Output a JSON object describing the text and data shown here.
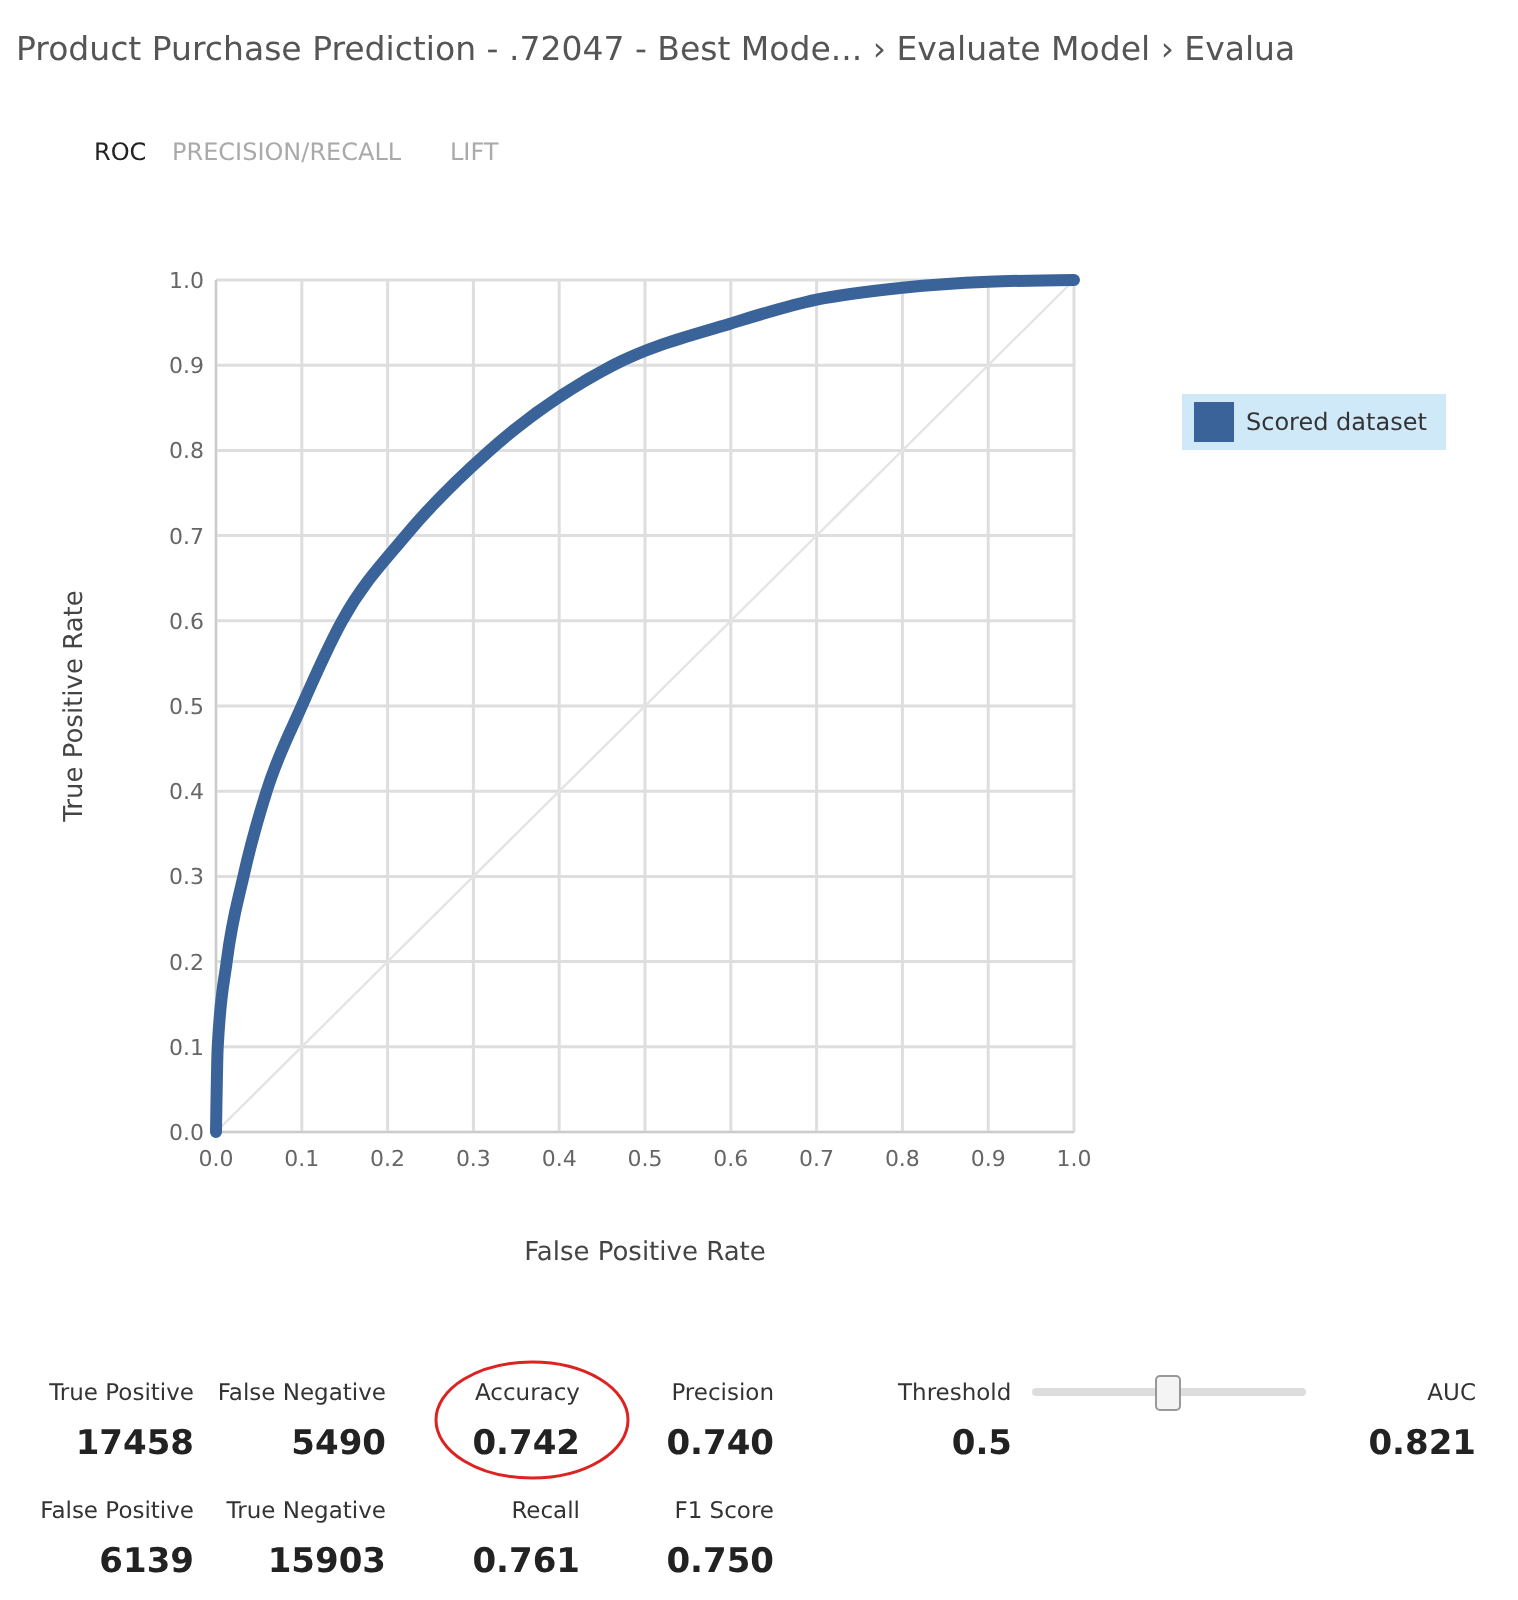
{
  "chart_data": {
    "type": "line",
    "title": "Product Purchase Prediction - .72047 - Best Mode... › Evaluate Model › Evalua",
    "xlabel": "False Positive Rate",
    "ylabel": "True Positive Rate",
    "series": [
      {
        "name": "Scored dataset",
        "color": "#3a6399",
        "x": [
          0,
          0.002,
          0.0125,
          0.032,
          0.059,
          0.1,
          0.147,
          0.221,
          0.319,
          0.463,
          0.6,
          0.7,
          0.8,
          0.9,
          1
        ],
        "values": [
          0,
          0.1,
          0.2,
          0.3,
          0.4,
          0.5,
          0.6,
          0.7,
          0.8,
          0.9,
          0.949,
          0.977,
          0.991,
          0.998,
          1
        ]
      },
      {
        "color": "#e4e4e4",
        "x": [
          0,
          1
        ],
        "values": [
          0,
          1
        ]
      }
    ],
    "xlim": [
      0,
      1
    ],
    "ylim": [
      0,
      1
    ],
    "xticks": [
      {
        "value": 0,
        "label": "0.0"
      },
      0.1,
      0.2,
      0.3,
      0.4,
      0.5,
      0.6,
      0.7,
      0.8,
      0.9,
      {
        "value": 1,
        "label": "1.0"
      }
    ],
    "yticks": [
      {
        "value": 0,
        "label": "0.0"
      },
      0.1,
      0.2,
      0.3,
      0.4,
      0.5,
      0.6,
      0.7,
      0.8,
      0.9,
      {
        "value": 1,
        "label": "1.0"
      }
    ],
    "grid": true,
    "legend": "right",
    "marker": "none",
    "line_style": "solid",
    "annotations": [
      "ROC",
      "PRECISION/RECALL",
      "LIFT",
      "True Positive",
      "17458",
      "False Negative",
      "5490",
      "Accuracy",
      "0.742",
      "Precision",
      "0.740",
      "Threshold",
      "0.5",
      "AUC",
      "0.821",
      "False Positive",
      "6139",
      "True Negative",
      "15903",
      "Recall",
      "0.761",
      "F1 Score",
      "0.750"
    ]
  }
}
